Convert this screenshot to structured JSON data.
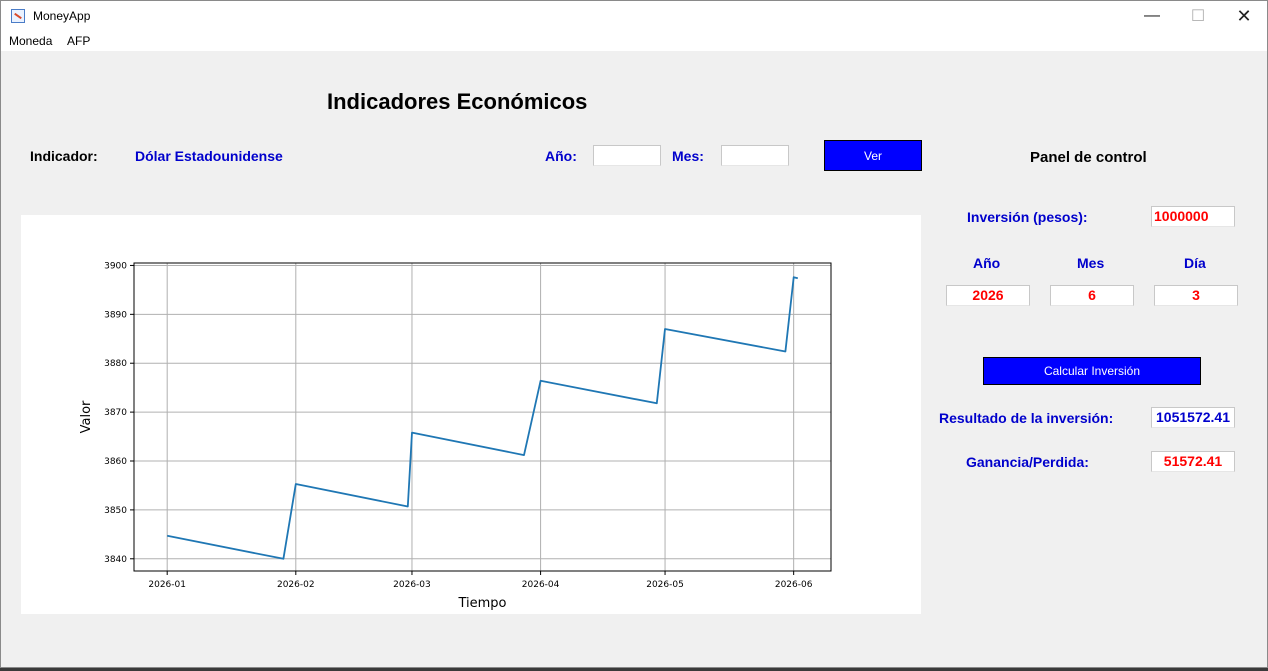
{
  "window": {
    "title": "MoneyApp",
    "icons": [
      "money-app-icon",
      "minimize-icon",
      "maximize-icon",
      "close-icon"
    ]
  },
  "menu": {
    "items": [
      "Moneda",
      "AFP"
    ]
  },
  "main": {
    "heading": "Indicadores Económicos",
    "indicator_label": "Indicador:",
    "indicator_value": "Dólar Estadounidense",
    "year_label": "Año:",
    "year_value": "",
    "month_label": "Mes:",
    "month_value": "",
    "view_button": "Ver"
  },
  "panel": {
    "title": "Panel de control",
    "investment_label": "Inversión (pesos):",
    "investment_value": "1000000",
    "year_header": "Año",
    "month_header": "Mes",
    "day_header": "Día",
    "year_value": "2026",
    "month_value": "6",
    "day_value": "3",
    "calculate_button": "Calcular Inversión",
    "result_label": "Resultado de la inversión:",
    "result_value": "1051572.41",
    "gain_label": "Ganancia/Perdida:",
    "gain_value": "51572.41"
  },
  "colors": {
    "accent_blue": "#0000ff",
    "label_blue": "#0000cc",
    "value_red": "#ff0000",
    "line": "#1f77b4"
  },
  "chart_data": {
    "type": "line",
    "xlabel": "Tiempo",
    "ylabel": "Valor",
    "grid": true,
    "x_ticks": [
      "2026-01",
      "2026-02",
      "2026-03",
      "2026-04",
      "2026-05",
      "2026-06"
    ],
    "y_ticks": [
      3840,
      3850,
      3860,
      3870,
      3880,
      3890,
      3900
    ],
    "ylim": [
      3837.5,
      3900.5
    ],
    "xlim": [
      "2025-12-24",
      "2026-06-10"
    ],
    "points": [
      {
        "x": "2026-01-01",
        "y": 3844.7
      },
      {
        "x": "2026-01-29",
        "y": 3840.0
      },
      {
        "x": "2026-02-01",
        "y": 3855.3
      },
      {
        "x": "2026-02-28",
        "y": 3850.7
      },
      {
        "x": "2026-03-01",
        "y": 3865.8
      },
      {
        "x": "2026-03-28",
        "y": 3861.2
      },
      {
        "x": "2026-04-01",
        "y": 3876.4
      },
      {
        "x": "2026-04-29",
        "y": 3871.8
      },
      {
        "x": "2026-05-01",
        "y": 3887.0
      },
      {
        "x": "2026-05-30",
        "y": 3882.4
      },
      {
        "x": "2026-06-01",
        "y": 3897.6
      },
      {
        "x": "2026-06-02",
        "y": 3897.4
      }
    ]
  }
}
